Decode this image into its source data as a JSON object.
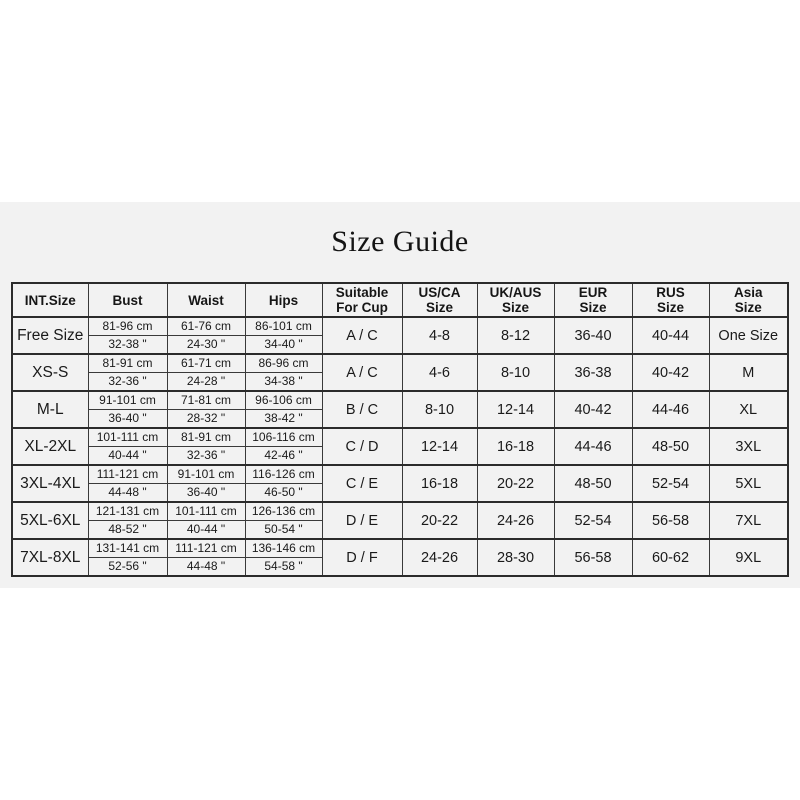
{
  "title": "Size Guide",
  "colors": {
    "page_bg": "#ffffff",
    "panel_bg": "#f2f2f2",
    "border": "#2b2b2b",
    "text": "#1a1a1a"
  },
  "table": {
    "headers": [
      "INT.Size",
      "Bust",
      "Waist",
      "Hips",
      "Suitable\nFor Cup",
      "US/CA\nSize",
      "UK/AUS\nSize",
      "EUR\nSize",
      "RUS\nSize",
      "Asia\nSize"
    ],
    "rows": [
      {
        "int_size": "Free Size",
        "bust_cm": "81-96 cm",
        "bust_in": "32-38 \"",
        "waist_cm": "61-76 cm",
        "waist_in": "24-30 \"",
        "hips_cm": "86-101 cm",
        "hips_in": "34-40 \"",
        "cup": "A / C",
        "us_ca": "4-8",
        "uk_aus": "8-12",
        "eur": "36-40",
        "rus": "40-44",
        "asia": "One Size"
      },
      {
        "int_size": "XS-S",
        "bust_cm": "81-91 cm",
        "bust_in": "32-36 \"",
        "waist_cm": "61-71 cm",
        "waist_in": "24-28 \"",
        "hips_cm": "86-96 cm",
        "hips_in": "34-38 \"",
        "cup": "A / C",
        "us_ca": "4-6",
        "uk_aus": "8-10",
        "eur": "36-38",
        "rus": "40-42",
        "asia": "M"
      },
      {
        "int_size": "M-L",
        "bust_cm": "91-101 cm",
        "bust_in": "36-40 \"",
        "waist_cm": "71-81 cm",
        "waist_in": "28-32 \"",
        "hips_cm": "96-106 cm",
        "hips_in": "38-42 \"",
        "cup": "B / C",
        "us_ca": "8-10",
        "uk_aus": "12-14",
        "eur": "40-42",
        "rus": "44-46",
        "asia": "XL"
      },
      {
        "int_size": "XL-2XL",
        "bust_cm": "101-111 cm",
        "bust_in": "40-44 \"",
        "waist_cm": "81-91 cm",
        "waist_in": "32-36 \"",
        "hips_cm": "106-116 cm",
        "hips_in": "42-46 \"",
        "cup": "C / D",
        "us_ca": "12-14",
        "uk_aus": "16-18",
        "eur": "44-46",
        "rus": "48-50",
        "asia": "3XL"
      },
      {
        "int_size": "3XL-4XL",
        "bust_cm": "111-121 cm",
        "bust_in": "44-48 \"",
        "waist_cm": "91-101 cm",
        "waist_in": "36-40 \"",
        "hips_cm": "116-126 cm",
        "hips_in": "46-50 \"",
        "cup": "C / E",
        "us_ca": "16-18",
        "uk_aus": "20-22",
        "eur": "48-50",
        "rus": "52-54",
        "asia": "5XL"
      },
      {
        "int_size": "5XL-6XL",
        "bust_cm": "121-131 cm",
        "bust_in": "48-52 \"",
        "waist_cm": "101-111 cm",
        "waist_in": "40-44 \"",
        "hips_cm": "126-136 cm",
        "hips_in": "50-54 \"",
        "cup": "D / E",
        "us_ca": "20-22",
        "uk_aus": "24-26",
        "eur": "52-54",
        "rus": "56-58",
        "asia": "7XL"
      },
      {
        "int_size": "7XL-8XL",
        "bust_cm": "131-141 cm",
        "bust_in": "52-56 \"",
        "waist_cm": "111-121 cm",
        "waist_in": "44-48 \"",
        "hips_cm": "136-146 cm",
        "hips_in": "54-58 \"",
        "cup": "D / F",
        "us_ca": "24-26",
        "uk_aus": "28-30",
        "eur": "56-58",
        "rus": "60-62",
        "asia": "9XL"
      }
    ]
  }
}
